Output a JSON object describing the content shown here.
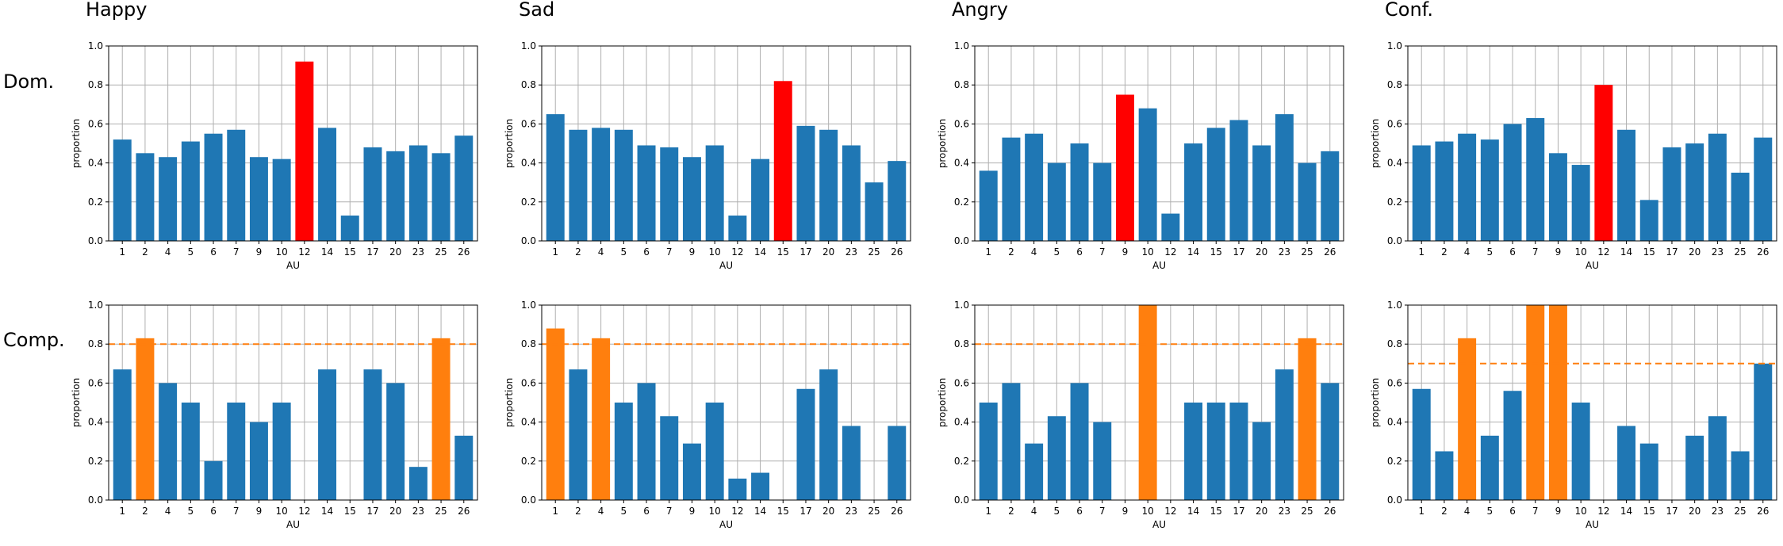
{
  "column_titles": [
    "Happy",
    "Sad",
    "Angry",
    "Conf."
  ],
  "row_labels": [
    "Dom.",
    "Comp."
  ],
  "colors": {
    "bar": "#1f77b4",
    "highlight_dom": "#ff0000",
    "highlight_comp": "#ff7f0e",
    "threshold": "#ff7f0e",
    "grid": "#b0b0b0"
  },
  "chart_data": [
    {
      "type": "bar",
      "row": "Dom.",
      "title": "Happy",
      "xlabel": "AU",
      "ylabel": "proportion",
      "ylim": [
        0,
        1.0
      ],
      "grid": true,
      "yticks": [
        "0.0",
        "0.2",
        "0.4",
        "0.6",
        "0.8",
        "1.0"
      ],
      "categories": [
        "1",
        "2",
        "4",
        "5",
        "6",
        "7",
        "9",
        "10",
        "12",
        "14",
        "15",
        "17",
        "20",
        "23",
        "25",
        "26"
      ],
      "values": [
        0.52,
        0.45,
        0.43,
        0.51,
        0.55,
        0.57,
        0.43,
        0.42,
        0.92,
        0.58,
        0.13,
        0.48,
        0.46,
        0.49,
        0.45,
        0.54
      ],
      "highlight": [
        "12"
      ],
      "threshold": null
    },
    {
      "type": "bar",
      "row": "Dom.",
      "title": "Sad",
      "xlabel": "AU",
      "ylabel": "proportion",
      "ylim": [
        0,
        1.0
      ],
      "grid": true,
      "yticks": [
        "0.0",
        "0.2",
        "0.4",
        "0.6",
        "0.8",
        "1.0"
      ],
      "categories": [
        "1",
        "2",
        "4",
        "5",
        "6",
        "7",
        "9",
        "10",
        "12",
        "14",
        "15",
        "17",
        "20",
        "23",
        "25",
        "26"
      ],
      "values": [
        0.65,
        0.57,
        0.58,
        0.57,
        0.49,
        0.48,
        0.43,
        0.49,
        0.13,
        0.42,
        0.82,
        0.59,
        0.57,
        0.49,
        0.3,
        0.41
      ],
      "highlight": [
        "15"
      ],
      "threshold": null
    },
    {
      "type": "bar",
      "row": "Dom.",
      "title": "Angry",
      "xlabel": "AU",
      "ylabel": "proportion",
      "ylim": [
        0,
        1.0
      ],
      "grid": true,
      "yticks": [
        "0.0",
        "0.2",
        "0.4",
        "0.6",
        "0.8",
        "1.0"
      ],
      "categories": [
        "1",
        "2",
        "4",
        "5",
        "6",
        "7",
        "9",
        "10",
        "12",
        "14",
        "15",
        "17",
        "20",
        "23",
        "25",
        "26"
      ],
      "values": [
        0.36,
        0.53,
        0.55,
        0.4,
        0.5,
        0.4,
        0.75,
        0.68,
        0.14,
        0.5,
        0.58,
        0.62,
        0.49,
        0.65,
        0.4,
        0.46
      ],
      "highlight": [
        "9"
      ],
      "threshold": null
    },
    {
      "type": "bar",
      "row": "Dom.",
      "title": "Conf.",
      "xlabel": "AU",
      "ylabel": "proportion",
      "ylim": [
        0,
        1.0
      ],
      "grid": true,
      "yticks": [
        "0.0",
        "0.2",
        "0.4",
        "0.6",
        "0.8",
        "1.0"
      ],
      "categories": [
        "1",
        "2",
        "4",
        "5",
        "6",
        "7",
        "9",
        "10",
        "12",
        "14",
        "15",
        "17",
        "20",
        "23",
        "25",
        "26"
      ],
      "values": [
        0.49,
        0.51,
        0.55,
        0.52,
        0.6,
        0.63,
        0.45,
        0.39,
        0.8,
        0.57,
        0.21,
        0.48,
        0.5,
        0.55,
        0.35,
        0.53
      ],
      "highlight": [
        "12"
      ],
      "threshold": null
    },
    {
      "type": "bar",
      "row": "Comp.",
      "title": "Happy",
      "xlabel": "AU",
      "ylabel": "proportion",
      "ylim": [
        0,
        1.0
      ],
      "grid": true,
      "yticks": [
        "0.0",
        "0.2",
        "0.4",
        "0.6",
        "0.8",
        "1.0"
      ],
      "categories": [
        "1",
        "2",
        "4",
        "5",
        "6",
        "7",
        "9",
        "10",
        "12",
        "14",
        "15",
        "17",
        "20",
        "23",
        "25",
        "26"
      ],
      "values": [
        0.67,
        0.83,
        0.6,
        0.5,
        0.2,
        0.5,
        0.4,
        0.5,
        0,
        0.67,
        0,
        0.67,
        0.6,
        0.17,
        0.83,
        0.33
      ],
      "highlight": [
        "2",
        "25"
      ],
      "threshold": 0.8
    },
    {
      "type": "bar",
      "row": "Comp.",
      "title": "Sad",
      "xlabel": "AU",
      "ylabel": "proportion",
      "ylim": [
        0,
        1.0
      ],
      "grid": true,
      "yticks": [
        "0.0",
        "0.2",
        "0.4",
        "0.6",
        "0.8",
        "1.0"
      ],
      "categories": [
        "1",
        "2",
        "4",
        "5",
        "6",
        "7",
        "9",
        "10",
        "12",
        "14",
        "15",
        "17",
        "20",
        "23",
        "25",
        "26"
      ],
      "values": [
        0.88,
        0.67,
        0.83,
        0.5,
        0.6,
        0.43,
        0.29,
        0.5,
        0.11,
        0.14,
        0,
        0.57,
        0.67,
        0.38,
        0,
        0.38
      ],
      "highlight": [
        "1",
        "4"
      ],
      "threshold": 0.8
    },
    {
      "type": "bar",
      "row": "Comp.",
      "title": "Angry",
      "xlabel": "AU",
      "ylabel": "proportion",
      "ylim": [
        0,
        1.0
      ],
      "grid": true,
      "yticks": [
        "0.0",
        "0.2",
        "0.4",
        "0.6",
        "0.8",
        "1.0"
      ],
      "categories": [
        "1",
        "2",
        "4",
        "5",
        "6",
        "7",
        "9",
        "10",
        "12",
        "14",
        "15",
        "17",
        "20",
        "23",
        "25",
        "26"
      ],
      "values": [
        0.5,
        0.6,
        0.29,
        0.43,
        0.6,
        0.4,
        0,
        1.0,
        0,
        0.5,
        0.5,
        0.5,
        0.4,
        0.67,
        0.83,
        0.6
      ],
      "highlight": [
        "10",
        "25"
      ],
      "threshold": 0.8
    },
    {
      "type": "bar",
      "row": "Comp.",
      "title": "Conf.",
      "xlabel": "AU",
      "ylabel": "proportion",
      "ylim": [
        0,
        1.0
      ],
      "grid": true,
      "yticks": [
        "0.0",
        "0.2",
        "0.4",
        "0.6",
        "0.8",
        "1.0"
      ],
      "categories": [
        "1",
        "2",
        "4",
        "5",
        "6",
        "7",
        "9",
        "10",
        "12",
        "14",
        "15",
        "17",
        "20",
        "23",
        "25",
        "26"
      ],
      "values": [
        0.57,
        0.25,
        0.83,
        0.33,
        0.56,
        1.0,
        1.0,
        0.5,
        0,
        0.38,
        0.29,
        0,
        0.33,
        0.43,
        0.25,
        0.7
      ],
      "highlight": [
        "4",
        "7",
        "9"
      ],
      "threshold": 0.7
    }
  ]
}
